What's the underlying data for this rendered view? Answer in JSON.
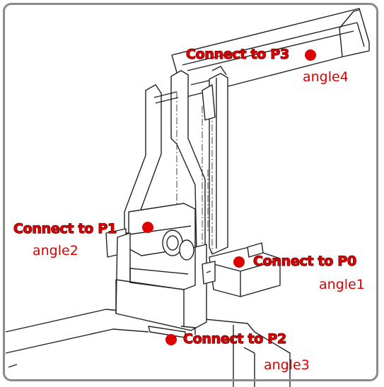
{
  "colors": {
    "accent": "#dd0000",
    "frame": "#8a8a8a",
    "line": "#222222"
  },
  "labels": {
    "p3": "Connect to P3",
    "p1": "Connect to P1",
    "p0": "Connect to P0",
    "p2": "Connect to P2"
  },
  "angles": {
    "a4": "angle4",
    "a2": "angle2",
    "a1": "angle1",
    "a3": "angle3"
  }
}
